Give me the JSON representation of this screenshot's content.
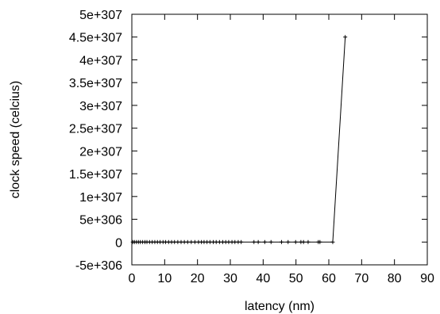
{
  "chart_data": {
    "type": "line",
    "xlabel": "latency (nm)",
    "ylabel": "clock speed (celcius)",
    "xlim": [
      0,
      90
    ],
    "ylim": [
      -5e+306,
      5e+307
    ],
    "x_ticks": [
      0,
      10,
      20,
      30,
      40,
      50,
      60,
      70,
      80,
      90
    ],
    "x_tick_labels": [
      "0",
      "10",
      "20",
      "30",
      "40",
      "50",
      "60",
      "70",
      "80",
      "90"
    ],
    "y_ticks": [
      -5e+306,
      0,
      5e+306,
      1e+307,
      1.5e+307,
      2e+307,
      2.5e+307,
      3e+307,
      3.5e+307,
      4e+307,
      4.5e+307,
      5e+307
    ],
    "y_tick_labels": [
      "-5e+306",
      "0",
      "5e+306",
      "1e+307",
      "1.5e+307",
      "2e+307",
      "2.5e+307",
      "3e+307",
      "3.5e+307",
      "4e+307",
      "4.5e+307",
      "5e+307"
    ],
    "grid": false,
    "line_color": "#000000",
    "marker": "plus",
    "series": [
      {
        "x": [
          0.3,
          0.8,
          1.4,
          2.0,
          2.6,
          3.3,
          4.0,
          4.6,
          5.4,
          6.2,
          7.0,
          7.8,
          8.6,
          9.5,
          10.3,
          11.2,
          12.1,
          13.0,
          14.0,
          15.0,
          16.0,
          17.0,
          18.1,
          19.2,
          20.3,
          21.2,
          22.0,
          22.9,
          23.8,
          24.8,
          25.7,
          26.7,
          27.7,
          28.6,
          29.5,
          30.5,
          31.4,
          32.4,
          33.3,
          37.2,
          38.5,
          40.5,
          42.4,
          45.6,
          47.6,
          49.9,
          51.5,
          52.3,
          53.7,
          56.8,
          57.3,
          61.2,
          65.0
        ],
        "y": [
          0,
          0,
          0,
          0,
          0,
          0,
          0,
          0,
          0,
          0,
          0,
          0,
          0,
          0,
          0,
          0,
          0,
          0,
          0,
          0,
          0,
          0,
          0,
          0,
          0,
          0,
          0,
          0,
          0,
          0,
          0,
          0,
          0,
          0,
          0,
          0,
          0,
          0,
          0,
          0,
          0,
          0,
          0,
          0,
          0,
          0,
          0,
          0,
          0,
          0,
          0,
          0,
          4.5e+307
        ]
      }
    ]
  }
}
